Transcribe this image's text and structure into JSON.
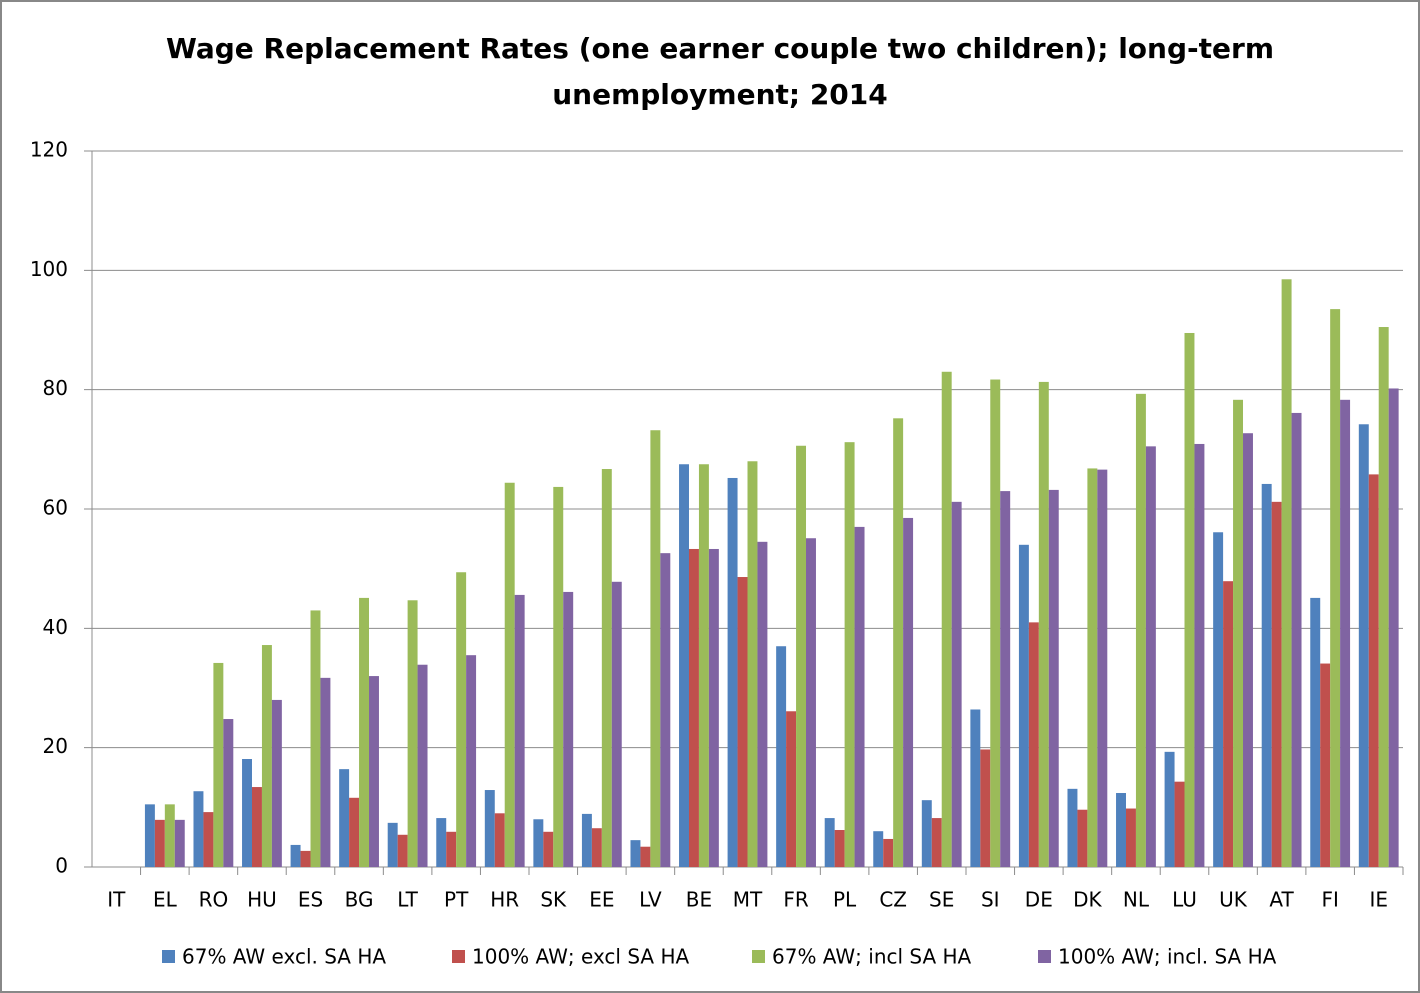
{
  "chart_data": {
    "type": "bar",
    "title": "Wage Replacement Rates (one earner couple two children); long-term unemployment; 2014",
    "categories": [
      "IT",
      "EL",
      "RO",
      "HU",
      "ES",
      "BG",
      "LT",
      "PT",
      "HR",
      "SK",
      "EE",
      "LV",
      "BE",
      "MT",
      "FR",
      "PL",
      "CZ",
      "SE",
      "SI",
      "DE",
      "DK",
      "NL",
      "LU",
      "UK",
      "AT",
      "FI",
      "IE"
    ],
    "series": [
      {
        "name": "67% AW excl. SA HA",
        "color": "#4f81bd",
        "values": [
          null,
          10.5,
          12.7,
          18.1,
          3.7,
          16.4,
          7.4,
          8.2,
          12.9,
          8,
          8.9,
          4.5,
          67.5,
          65.2,
          37,
          8.2,
          6,
          11.2,
          26.4,
          54,
          13.1,
          12.4,
          19.3,
          56.1,
          64.2,
          45.1,
          74.2
        ]
      },
      {
        "name": "100% AW; excl SA HA",
        "color": "#c0504d",
        "values": [
          null,
          7.9,
          9.2,
          13.4,
          2.7,
          11.6,
          5.4,
          5.9,
          9,
          5.9,
          6.5,
          3.4,
          53.3,
          48.6,
          26.1,
          6.2,
          4.7,
          8.2,
          19.7,
          41,
          9.6,
          9.8,
          14.3,
          47.9,
          61.2,
          34.1,
          65.8
        ]
      },
      {
        "name": "67% AW; incl SA HA",
        "color": "#9bbb59",
        "values": [
          null,
          10.5,
          34.2,
          37.2,
          43,
          45.1,
          44.7,
          49.4,
          64.4,
          63.7,
          66.7,
          73.2,
          67.5,
          68,
          70.6,
          71.2,
          75.2,
          83,
          81.7,
          81.3,
          66.8,
          79.3,
          89.5,
          78.3,
          98.5,
          93.5,
          90.5
        ]
      },
      {
        "name": "100% AW; incl. SA HA",
        "color": "#8064a2",
        "values": [
          null,
          7.9,
          24.8,
          28,
          31.7,
          32,
          33.9,
          35.5,
          45.6,
          46.1,
          47.8,
          52.6,
          53.3,
          54.5,
          55.1,
          57,
          58.5,
          61.2,
          63,
          63.2,
          66.6,
          70.5,
          70.9,
          72.7,
          76.1,
          78.3,
          80.2
        ]
      }
    ],
    "ylim": [
      0,
      120
    ],
    "yticks": [
      0,
      20,
      40,
      60,
      80,
      100,
      120
    ],
    "grid": true,
    "legend": "bottom"
  }
}
